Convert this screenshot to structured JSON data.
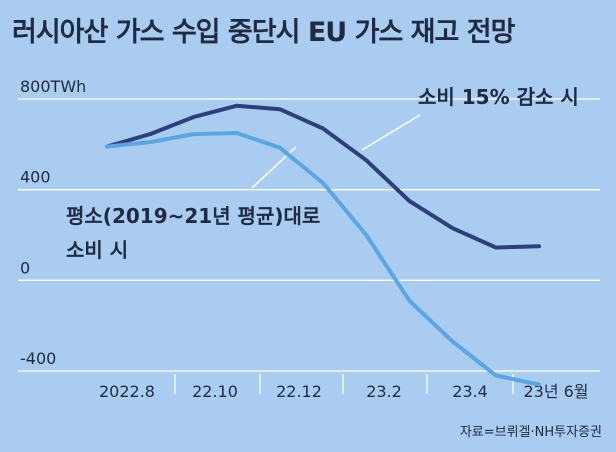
{
  "chart_data": {
    "type": "line",
    "title": "러시아산 가스 수입 중단시 EU 가스 재고 전망",
    "ylabel": "",
    "xlabel": "",
    "y_ticks": [
      "800TWh",
      "400",
      "0",
      "-400"
    ],
    "y_tick_values": [
      800,
      400,
      0,
      -400
    ],
    "ylim": [
      -400,
      800
    ],
    "x_ticks": [
      "2022.8",
      "22.10",
      "22.12",
      "23.2",
      "23.4",
      "23년 6월"
    ],
    "x": [
      "2022.8",
      "2022.9",
      "2022.10",
      "2022.11",
      "2022.12",
      "2023.1",
      "2023.2",
      "2023.3",
      "2023.4",
      "2023.5",
      "2023.6"
    ],
    "series": [
      {
        "name": "소비 15% 감소 시",
        "color": "#2f3f7e",
        "values": [
          590,
          645,
          720,
          770,
          755,
          670,
          530,
          350,
          230,
          145,
          150
        ]
      },
      {
        "name": "평소(2019~21년 평균)대로 소비 시",
        "color": "#5aa6e4",
        "values": [
          590,
          610,
          645,
          650,
          585,
          430,
          200,
          -90,
          -270,
          -420,
          -460
        ]
      }
    ],
    "annotations": {
      "a1": "소비 15% 감소 시",
      "a2_line1": "평소(2019~21년 평균)대로",
      "a2_line2": "소비 시"
    },
    "grid": "horizontal",
    "source": "자료=브뤼겔·NH투자증권"
  }
}
